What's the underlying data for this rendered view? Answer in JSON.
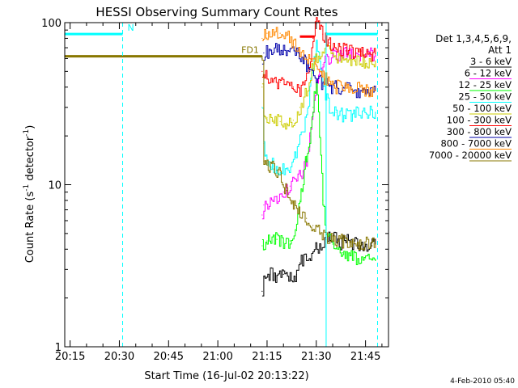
{
  "chart_data": {
    "type": "line",
    "title": "HESSI Observing Summary Count Rates",
    "xlabel": "Start Time (16-Jul-02 20:13:22)",
    "ylabel_main": "Count Rate (s",
    "ylabel_sup1": "-1",
    "ylabel_mid": " detector",
    "ylabel_sup2": "-1",
    "ylabel_end": ")",
    "yscale": "log",
    "ylim": [
      1,
      100
    ],
    "xlim": [
      "20:13:22",
      "21:52:00"
    ],
    "x_ticks": [
      {
        "t": "20:15",
        "label": "20:15"
      },
      {
        "t": "20:30",
        "label": "20:30"
      },
      {
        "t": "20:45",
        "label": "20:45"
      },
      {
        "t": "21:00",
        "label": "21:00"
      },
      {
        "t": "21:15",
        "label": "21:15"
      },
      {
        "t": "21:30",
        "label": "21:30"
      },
      {
        "t": "21:45",
        "label": "21:45"
      }
    ],
    "y_ticks": [
      {
        "v": 1,
        "label": "1"
      },
      {
        "v": 10,
        "label": "10"
      },
      {
        "v": 100,
        "label": "100"
      }
    ],
    "legend_header": [
      "Det 1,3,4,5,6,9,",
      "Att 1"
    ],
    "series": [
      {
        "name": "3 - 6 keV",
        "color": "#000000",
        "points": [
          [
            "21:13:30",
            2.2
          ],
          [
            "21:14",
            2.7
          ],
          [
            "21:16",
            2.8
          ],
          [
            "21:18",
            2.7
          ],
          [
            "21:20",
            2.8
          ],
          [
            "21:22",
            2.6
          ],
          [
            "21:24",
            2.8
          ],
          [
            "21:25",
            3.3
          ],
          [
            "21:27",
            3.6
          ],
          [
            "21:29",
            3.8
          ],
          [
            "21:31",
            4.2
          ],
          [
            "21:33",
            4.6
          ],
          [
            "21:35",
            4.8
          ],
          [
            "21:37",
            4.3
          ],
          [
            "21:39",
            4.5
          ],
          [
            "21:41",
            4.3
          ],
          [
            "21:43",
            4.2
          ],
          [
            "21:45",
            4.3
          ],
          [
            "21:47",
            4.2
          ],
          [
            "21:48",
            4.3
          ]
        ]
      },
      {
        "name": "6 - 12 keV",
        "color": "#ff00ff",
        "points": [
          [
            "21:13:30",
            6.5
          ],
          [
            "21:14",
            7.5
          ],
          [
            "21:16",
            8.0
          ],
          [
            "21:18",
            8.5
          ],
          [
            "21:20",
            9.0
          ],
          [
            "21:22",
            9.8
          ],
          [
            "21:24",
            10.5
          ],
          [
            "21:26",
            12.0
          ],
          [
            "21:27",
            14.0
          ],
          [
            "21:28",
            20
          ],
          [
            "21:29",
            28
          ],
          [
            "21:30",
            40
          ],
          [
            "21:31",
            50
          ],
          [
            "21:32",
            55
          ],
          [
            "21:33",
            60
          ],
          [
            "21:35",
            63
          ],
          [
            "21:38",
            64
          ],
          [
            "21:42",
            63
          ],
          [
            "21:45",
            64
          ],
          [
            "21:48",
            63
          ]
        ]
      },
      {
        "name": "12 - 25 keV",
        "color": "#00ff00",
        "points": [
          [
            "21:13:30",
            4.2
          ],
          [
            "21:15",
            4.5
          ],
          [
            "21:18",
            4.6
          ],
          [
            "21:20",
            4.4
          ],
          [
            "21:22",
            4.5
          ],
          [
            "21:24",
            5.2
          ],
          [
            "21:25",
            8
          ],
          [
            "21:26",
            11
          ],
          [
            "21:27",
            15
          ],
          [
            "21:28",
            18
          ],
          [
            "21:29",
            30
          ],
          [
            "21:30",
            45
          ],
          [
            "21:31",
            20
          ],
          [
            "21:32",
            8
          ],
          [
            "21:33",
            5
          ],
          [
            "21:35",
            4.3
          ],
          [
            "21:38",
            3.8
          ],
          [
            "21:41",
            3.5
          ],
          [
            "21:45",
            3.5
          ],
          [
            "21:48",
            3.4
          ]
        ]
      },
      {
        "name": "25 - 50 keV",
        "color": "#00ffff",
        "points": [
          [
            "21:13:30",
            30
          ],
          [
            "21:14",
            18
          ],
          [
            "21:15",
            14
          ],
          [
            "21:17",
            13
          ],
          [
            "21:19",
            12.5
          ],
          [
            "21:21",
            12.5
          ],
          [
            "21:23",
            14
          ],
          [
            "21:25",
            20
          ],
          [
            "21:27",
            26
          ],
          [
            "21:28",
            38
          ],
          [
            "21:29",
            55
          ],
          [
            "21:30",
            75
          ],
          [
            "21:31",
            60
          ],
          [
            "21:32",
            42
          ],
          [
            "21:34",
            30
          ],
          [
            "21:36",
            28
          ],
          [
            "21:38",
            27
          ],
          [
            "21:41",
            27
          ],
          [
            "21:44",
            28
          ],
          [
            "21:48",
            28
          ]
        ]
      },
      {
        "name": "50 - 100 keV",
        "color": "#cccc00",
        "points": [
          [
            "21:13:30",
            40
          ],
          [
            "21:14",
            28
          ],
          [
            "21:15",
            26
          ],
          [
            "21:17",
            25
          ],
          [
            "21:19",
            24.5
          ],
          [
            "21:21",
            24
          ],
          [
            "21:23",
            25
          ],
          [
            "21:25",
            30
          ],
          [
            "21:27",
            38
          ],
          [
            "21:29",
            55
          ],
          [
            "21:31",
            65
          ],
          [
            "21:33",
            68
          ],
          [
            "21:36",
            62
          ],
          [
            "21:39",
            59
          ],
          [
            "21:42",
            59
          ],
          [
            "21:45",
            58
          ],
          [
            "21:48",
            58
          ]
        ]
      },
      {
        "name": "100 - 300 keV",
        "color": "#ff0000",
        "points": [
          [
            "21:13:30",
            50
          ],
          [
            "21:15",
            45
          ],
          [
            "21:17",
            44
          ],
          [
            "21:19",
            43
          ],
          [
            "21:21",
            42
          ],
          [
            "21:23",
            40
          ],
          [
            "21:25",
            36
          ],
          [
            "21:27",
            45
          ],
          [
            "21:29",
            80
          ],
          [
            "21:30",
            98
          ],
          [
            "21:31",
            92
          ],
          [
            "21:32",
            85
          ],
          [
            "21:34",
            75
          ],
          [
            "21:36",
            70
          ],
          [
            "21:39",
            67
          ],
          [
            "21:42",
            64
          ],
          [
            "21:45",
            64
          ],
          [
            "21:48",
            64
          ]
        ]
      },
      {
        "name": "300 - 800 keV",
        "color": "#0000aa",
        "points": [
          [
            "21:13:30",
            60
          ],
          [
            "21:14",
            65
          ],
          [
            "21:16",
            67
          ],
          [
            "21:18",
            68
          ],
          [
            "21:20",
            67
          ],
          [
            "21:22",
            66
          ],
          [
            "21:24",
            64
          ],
          [
            "21:26",
            60
          ],
          [
            "21:27",
            55
          ],
          [
            "21:28",
            50
          ],
          [
            "21:30",
            45
          ],
          [
            "21:32",
            42
          ],
          [
            "21:35",
            40
          ],
          [
            "21:38",
            39
          ],
          [
            "21:41",
            38
          ],
          [
            "21:45",
            38
          ],
          [
            "21:48",
            38
          ]
        ]
      },
      {
        "name": "800 - 7000 keV",
        "color": "#ff8800",
        "points": [
          [
            "21:13:30",
            80
          ],
          [
            "21:15",
            86
          ],
          [
            "21:17",
            88
          ],
          [
            "21:19",
            86
          ],
          [
            "21:21",
            83
          ],
          [
            "21:23",
            74
          ],
          [
            "21:25",
            66
          ],
          [
            "21:27",
            61
          ],
          [
            "21:28",
            60
          ],
          [
            "21:29",
            58
          ],
          [
            "21:30",
            54
          ],
          [
            "21:31",
            50
          ],
          [
            "21:32",
            46
          ],
          [
            "21:34",
            42
          ],
          [
            "21:36",
            40
          ],
          [
            "21:38",
            40
          ],
          [
            "21:41",
            39
          ],
          [
            "21:44",
            39
          ],
          [
            "21:48",
            38
          ]
        ]
      },
      {
        "name": "7000 - 20000 keV",
        "color": "#887700",
        "points": [
          [
            "20:13:22",
            62
          ],
          [
            "21:13:30",
            62
          ],
          [
            "21:14",
            14
          ],
          [
            "21:15",
            13.2
          ],
          [
            "21:16",
            12.8
          ],
          [
            "21:17",
            12.5
          ],
          [
            "21:18",
            12.3
          ],
          [
            "21:19",
            11.5
          ],
          [
            "21:20",
            10.0
          ],
          [
            "21:21",
            9.2
          ],
          [
            "21:22",
            8.3
          ],
          [
            "21:23",
            7.8
          ],
          [
            "21:24",
            7.2
          ],
          [
            "21:25",
            6.5
          ],
          [
            "21:27",
            6.2
          ],
          [
            "21:29",
            5.6
          ],
          [
            "21:31",
            5.1
          ],
          [
            "21:33",
            4.8
          ],
          [
            "21:35",
            4.6
          ],
          [
            "21:38",
            4.5
          ],
          [
            "21:41",
            4.4
          ],
          [
            "21:44",
            4.3
          ],
          [
            "21:48",
            4.3
          ]
        ]
      }
    ],
    "annotations": [
      {
        "type": "hband",
        "label": "N",
        "color": "#00ffff",
        "value": 85,
        "ranges": [
          [
            "20:13:22",
            "20:31:00"
          ],
          [
            "21:33:00",
            "21:48:40"
          ]
        ]
      },
      {
        "type": "hband",
        "label": "FD1",
        "color": "#887700",
        "value": 62,
        "ranges": [
          [
            "20:13:22",
            "21:13:30"
          ]
        ]
      },
      {
        "type": "hband",
        "label": "",
        "color": "#ff0000",
        "value": 82,
        "ranges": [
          [
            "21:25:00",
            "21:29:30"
          ]
        ]
      },
      {
        "type": "vline",
        "color": "#00ffff",
        "style": "dashed",
        "t": "20:31:00"
      },
      {
        "type": "vline",
        "color": "#00ffff",
        "style": "dashed",
        "t": "21:48:40"
      },
      {
        "type": "vline",
        "color": "#00ffff",
        "style": "solid",
        "t": "21:33:00"
      },
      {
        "type": "vline",
        "color": "#00ffff",
        "style": "solid",
        "t": "20:13:22"
      }
    ],
    "grid": false,
    "legend_position": "right"
  },
  "footer": {
    "timestamp": "4-Feb-2010 05:40"
  }
}
